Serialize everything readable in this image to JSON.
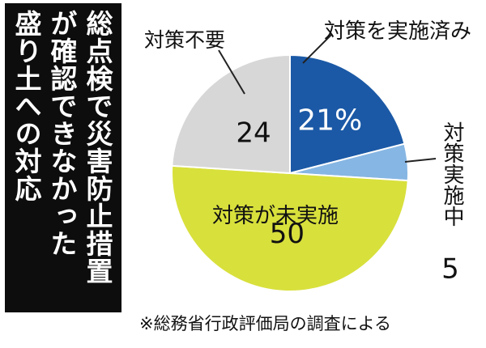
{
  "chart_data": {
    "type": "pie",
    "title": [
      "総点検で災害防止措置",
      "が確認できなかった",
      "盛り土への対応"
    ],
    "categories": [
      "対策を実施済み",
      "対策実施中",
      "対策が未実施",
      "対策不要"
    ],
    "values": [
      21,
      5,
      50,
      24
    ],
    "value_labels": [
      "21%",
      "5",
      "50",
      "24"
    ],
    "colors": [
      "#1b59a6",
      "#86b6e3",
      "#d8e03c",
      "#d7d7d7"
    ],
    "note": "※総務省行政評価局の調査による"
  }
}
